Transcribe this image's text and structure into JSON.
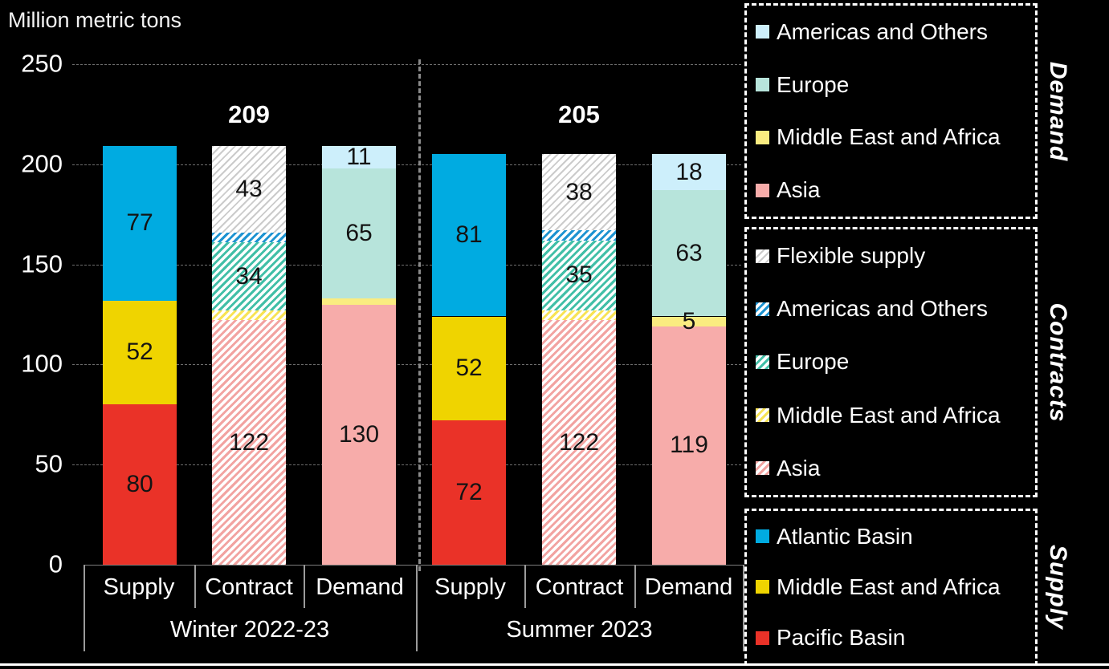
{
  "chart_data": {
    "type": "bar",
    "stacked": true,
    "unit_label": "Million metric tons",
    "ylim": [
      0,
      250
    ],
    "yticks": [
      0,
      50,
      100,
      150,
      200,
      250
    ],
    "grid": true,
    "legend_position": "right",
    "palette": {
      "supply_pacific": "#EA3228",
      "supply_mea": "#EFD400",
      "supply_atlantic": "#00ABE1",
      "demand_asia": "#F7ACAA",
      "demand_mea": "#FAEC80",
      "demand_europe": "#B7E4DB",
      "demand_americas": "#CDEFFB",
      "contract_asia": "#F2A3A1",
      "contract_mea": "#F8E354",
      "contract_europe": "#41BFA7",
      "contract_americas": "#1D93D1",
      "contract_flexible": "#CBCBCB"
    },
    "colors": {
      "background": "#000000",
      "axis_text": "#ffffff",
      "value_text": "#141414",
      "gridline": "#6e6e6e",
      "group_divider": "#8a8a8a",
      "table_line": "#9b9b9b",
      "legend_border": "#ffffff",
      "bottom_rule": "#ffffff"
    },
    "groups": [
      {
        "label": "Winter 2022-23",
        "total_label": "209",
        "bars": [
          {
            "category": "Supply",
            "segments": [
              {
                "name": "Pacific Basin",
                "value": 80,
                "fill": "supply_pacific",
                "hatch": false,
                "labeled": true
              },
              {
                "name": "Middle East and Africa",
                "value": 52,
                "fill": "supply_mea",
                "hatch": false,
                "labeled": true
              },
              {
                "name": "Atlantic Basin",
                "value": 77,
                "fill": "supply_atlantic",
                "hatch": false,
                "labeled": true
              }
            ]
          },
          {
            "category": "Contract",
            "segments": [
              {
                "name": "Asia",
                "value": 122,
                "fill": "contract_asia",
                "hatch": true,
                "labeled": true
              },
              {
                "name": "Middle East and Africa",
                "value": 5,
                "fill": "contract_mea",
                "hatch": true,
                "labeled": false
              },
              {
                "name": "Europe",
                "value": 34,
                "fill": "contract_europe",
                "hatch": true,
                "labeled": true
              },
              {
                "name": "Americas and Others",
                "value": 5,
                "fill": "contract_americas",
                "hatch": true,
                "labeled": false
              },
              {
                "name": "Flexible supply",
                "value": 43,
                "fill": "contract_flexible",
                "hatch": true,
                "labeled": true
              }
            ]
          },
          {
            "category": "Demand",
            "segments": [
              {
                "name": "Asia",
                "value": 130,
                "fill": "demand_asia",
                "hatch": false,
                "labeled": true
              },
              {
                "name": "Middle East and Africa",
                "value": 3,
                "fill": "demand_mea",
                "hatch": false,
                "labeled": false
              },
              {
                "name": "Europe",
                "value": 65,
                "fill": "demand_europe",
                "hatch": false,
                "labeled": true
              },
              {
                "name": "Americas and Others",
                "value": 11,
                "fill": "demand_americas",
                "hatch": false,
                "labeled": true
              }
            ]
          }
        ]
      },
      {
        "label": "Summer 2023",
        "total_label": "205",
        "bars": [
          {
            "category": "Supply",
            "segments": [
              {
                "name": "Pacific Basin",
                "value": 72,
                "fill": "supply_pacific",
                "hatch": false,
                "labeled": true
              },
              {
                "name": "Middle East and Africa",
                "value": 52,
                "fill": "supply_mea",
                "hatch": false,
                "labeled": true
              },
              {
                "name": "Atlantic Basin",
                "value": 81,
                "fill": "supply_atlantic",
                "hatch": false,
                "labeled": true
              }
            ]
          },
          {
            "category": "Contract",
            "segments": [
              {
                "name": "Asia",
                "value": 122,
                "fill": "contract_asia",
                "hatch": true,
                "labeled": true
              },
              {
                "name": "Middle East and Africa",
                "value": 5,
                "fill": "contract_mea",
                "hatch": true,
                "labeled": false
              },
              {
                "name": "Europe",
                "value": 35,
                "fill": "contract_europe",
                "hatch": true,
                "labeled": true
              },
              {
                "name": "Americas and Others",
                "value": 5,
                "fill": "contract_americas",
                "hatch": true,
                "labeled": false
              },
              {
                "name": "Flexible supply",
                "value": 38,
                "fill": "contract_flexible",
                "hatch": true,
                "labeled": true
              }
            ]
          },
          {
            "category": "Demand",
            "segments": [
              {
                "name": "Asia",
                "value": 119,
                "fill": "demand_asia",
                "hatch": false,
                "labeled": true
              },
              {
                "name": "Middle East and Africa",
                "value": 5,
                "fill": "demand_mea",
                "hatch": false,
                "labeled": true
              },
              {
                "name": "Europe",
                "value": 63,
                "fill": "demand_europe",
                "hatch": false,
                "labeled": true
              },
              {
                "name": "Americas and Others",
                "value": 18,
                "fill": "demand_americas",
                "hatch": false,
                "labeled": true
              }
            ]
          }
        ]
      }
    ]
  },
  "legend": {
    "boxes": [
      {
        "title": "Demand",
        "items": [
          {
            "label": "Americas and Others",
            "fill": "demand_americas",
            "hatch": false
          },
          {
            "label": "Europe",
            "fill": "demand_europe",
            "hatch": false
          },
          {
            "label": "Middle East and Africa",
            "fill": "demand_mea",
            "hatch": false
          },
          {
            "label": "Asia",
            "fill": "demand_asia",
            "hatch": false
          }
        ]
      },
      {
        "title": "Contracts",
        "items": [
          {
            "label": "Flexible supply",
            "fill": "contract_flexible",
            "hatch": true
          },
          {
            "label": "Americas and Others",
            "fill": "contract_americas",
            "hatch": true
          },
          {
            "label": "Europe",
            "fill": "contract_europe",
            "hatch": true
          },
          {
            "label": "Middle East and Africa",
            "fill": "contract_mea",
            "hatch": true
          },
          {
            "label": "Asia",
            "fill": "contract_asia",
            "hatch": true
          }
        ]
      },
      {
        "title": "Supply",
        "items": [
          {
            "label": "Atlantic Basin",
            "fill": "supply_atlantic",
            "hatch": false
          },
          {
            "label": "Middle East and Africa",
            "fill": "supply_mea",
            "hatch": false
          },
          {
            "label": "Pacific Basin",
            "fill": "supply_pacific",
            "hatch": false
          }
        ]
      }
    ]
  }
}
